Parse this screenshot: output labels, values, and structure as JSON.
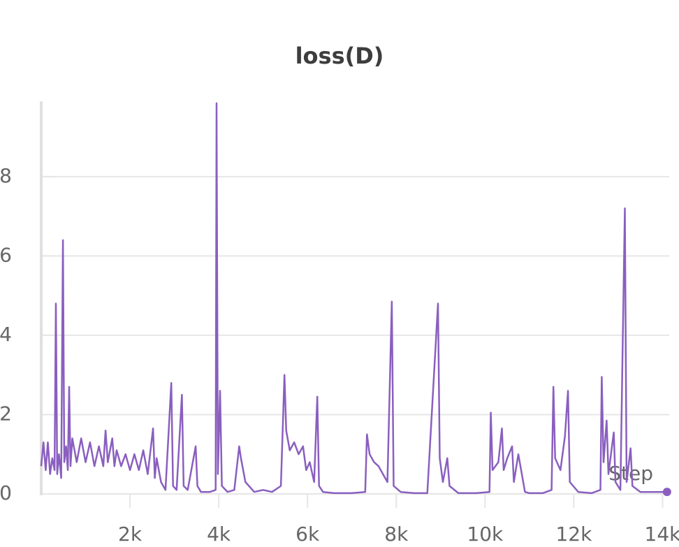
{
  "chart_data": {
    "type": "line",
    "title": "loss(D)",
    "x_label": "Step",
    "xlim": [
      0,
      14150
    ],
    "ylim": [
      0,
      9.9
    ],
    "xticks": [
      {
        "value": 2000,
        "label": "2k"
      },
      {
        "value": 4000,
        "label": "4k"
      },
      {
        "value": 6000,
        "label": "6k"
      },
      {
        "value": 8000,
        "label": "8k"
      },
      {
        "value": 10000,
        "label": "10k"
      },
      {
        "value": 12000,
        "label": "12k"
      },
      {
        "value": 14000,
        "label": "14k"
      }
    ],
    "yticks": [
      0,
      2,
      4,
      6,
      8
    ],
    "grid": true,
    "x": [
      0,
      50,
      100,
      150,
      200,
      250,
      300,
      330,
      360,
      400,
      450,
      490,
      520,
      560,
      600,
      630,
      660,
      700,
      800,
      900,
      1000,
      1100,
      1200,
      1300,
      1400,
      1450,
      1500,
      1600,
      1650,
      1700,
      1800,
      1900,
      2000,
      2100,
      2200,
      2300,
      2400,
      2520,
      2560,
      2600,
      2700,
      2800,
      2930,
      2970,
      3050,
      3170,
      3210,
      3300,
      3480,
      3520,
      3600,
      3800,
      3930,
      3950,
      3980,
      4030,
      4070,
      4200,
      4350,
      4460,
      4500,
      4600,
      4800,
      5000,
      5200,
      5400,
      5480,
      5520,
      5600,
      5700,
      5800,
      5900,
      5970,
      6050,
      6150,
      6220,
      6260,
      6350,
      6600,
      7000,
      7300,
      7340,
      7400,
      7500,
      7600,
      7700,
      7800,
      7900,
      7940,
      8100,
      8400,
      8700,
      8940,
      8980,
      9050,
      9150,
      9200,
      9400,
      9800,
      10100,
      10130,
      10170,
      10300,
      10380,
      10420,
      10500,
      10610,
      10650,
      10750,
      10900,
      11000,
      11300,
      11500,
      11540,
      11580,
      11700,
      11800,
      11870,
      11910,
      12100,
      12400,
      12600,
      12630,
      12670,
      12740,
      12780,
      12900,
      12940,
      13050,
      13150,
      13190,
      13280,
      13320,
      13500,
      13800,
      14100
    ],
    "series": [
      {
        "name": "loss(D)",
        "color": "#8a5fbf",
        "values": [
          0.7,
          1.3,
          0.6,
          1.3,
          0.5,
          0.9,
          0.6,
          4.8,
          0.5,
          1.0,
          0.4,
          6.4,
          0.8,
          1.2,
          0.6,
          2.7,
          0.7,
          1.4,
          0.8,
          1.4,
          0.8,
          1.3,
          0.7,
          1.2,
          0.7,
          1.6,
          0.8,
          1.4,
          0.7,
          1.1,
          0.7,
          1.0,
          0.6,
          1.0,
          0.6,
          1.1,
          0.5,
          1.65,
          0.4,
          0.9,
          0.3,
          0.1,
          2.8,
          0.2,
          0.1,
          2.5,
          0.2,
          0.1,
          1.2,
          0.2,
          0.05,
          0.05,
          0.1,
          9.85,
          0.5,
          2.6,
          0.2,
          0.05,
          0.1,
          1.2,
          0.9,
          0.3,
          0.05,
          0.1,
          0.05,
          0.2,
          3.0,
          1.6,
          1.1,
          1.3,
          1.0,
          1.2,
          0.6,
          0.8,
          0.3,
          2.45,
          0.2,
          0.05,
          0.02,
          0.02,
          0.05,
          1.5,
          1.0,
          0.8,
          0.7,
          0.5,
          0.3,
          4.85,
          0.2,
          0.05,
          0.02,
          0.02,
          4.8,
          0.9,
          0.3,
          0.9,
          0.2,
          0.02,
          0.02,
          0.05,
          2.05,
          0.6,
          0.8,
          1.65,
          0.6,
          0.9,
          1.2,
          0.3,
          1.0,
          0.05,
          0.02,
          0.02,
          0.1,
          2.7,
          0.9,
          0.6,
          1.45,
          2.6,
          0.3,
          0.05,
          0.02,
          0.1,
          2.95,
          0.8,
          1.85,
          0.5,
          1.55,
          0.3,
          0.1,
          7.2,
          0.3,
          1.15,
          0.2,
          0.05,
          0.05,
          0.05
        ]
      }
    ]
  }
}
